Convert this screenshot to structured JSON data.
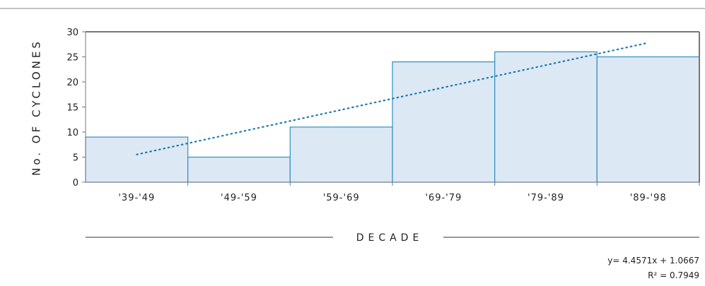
{
  "chart_data": {
    "type": "bar",
    "categories": [
      "'39-'49",
      "'49-'59",
      "'59-'69",
      "'69-'79",
      "'79-'89",
      "'89-'98"
    ],
    "values": [
      9,
      5,
      11,
      24,
      26,
      25
    ],
    "ylabel": "No. OF CYCLONES",
    "xlabel": "DECADE",
    "ylim": [
      0,
      30
    ],
    "yticks": [
      0,
      5,
      10,
      15,
      20,
      25,
      30
    ],
    "grid": false,
    "trendline": {
      "type": "linear",
      "slope": 4.4571,
      "intercept": 1.0667,
      "equation": "y= 4.4571x + 1.0667",
      "r_squared": "R² = 0.7949"
    },
    "colors": {
      "bar_fill": "#dde8f5",
      "bar_stroke": "#2f8fc0",
      "trendline": "#1a7ab0",
      "axis": "#777777"
    }
  }
}
